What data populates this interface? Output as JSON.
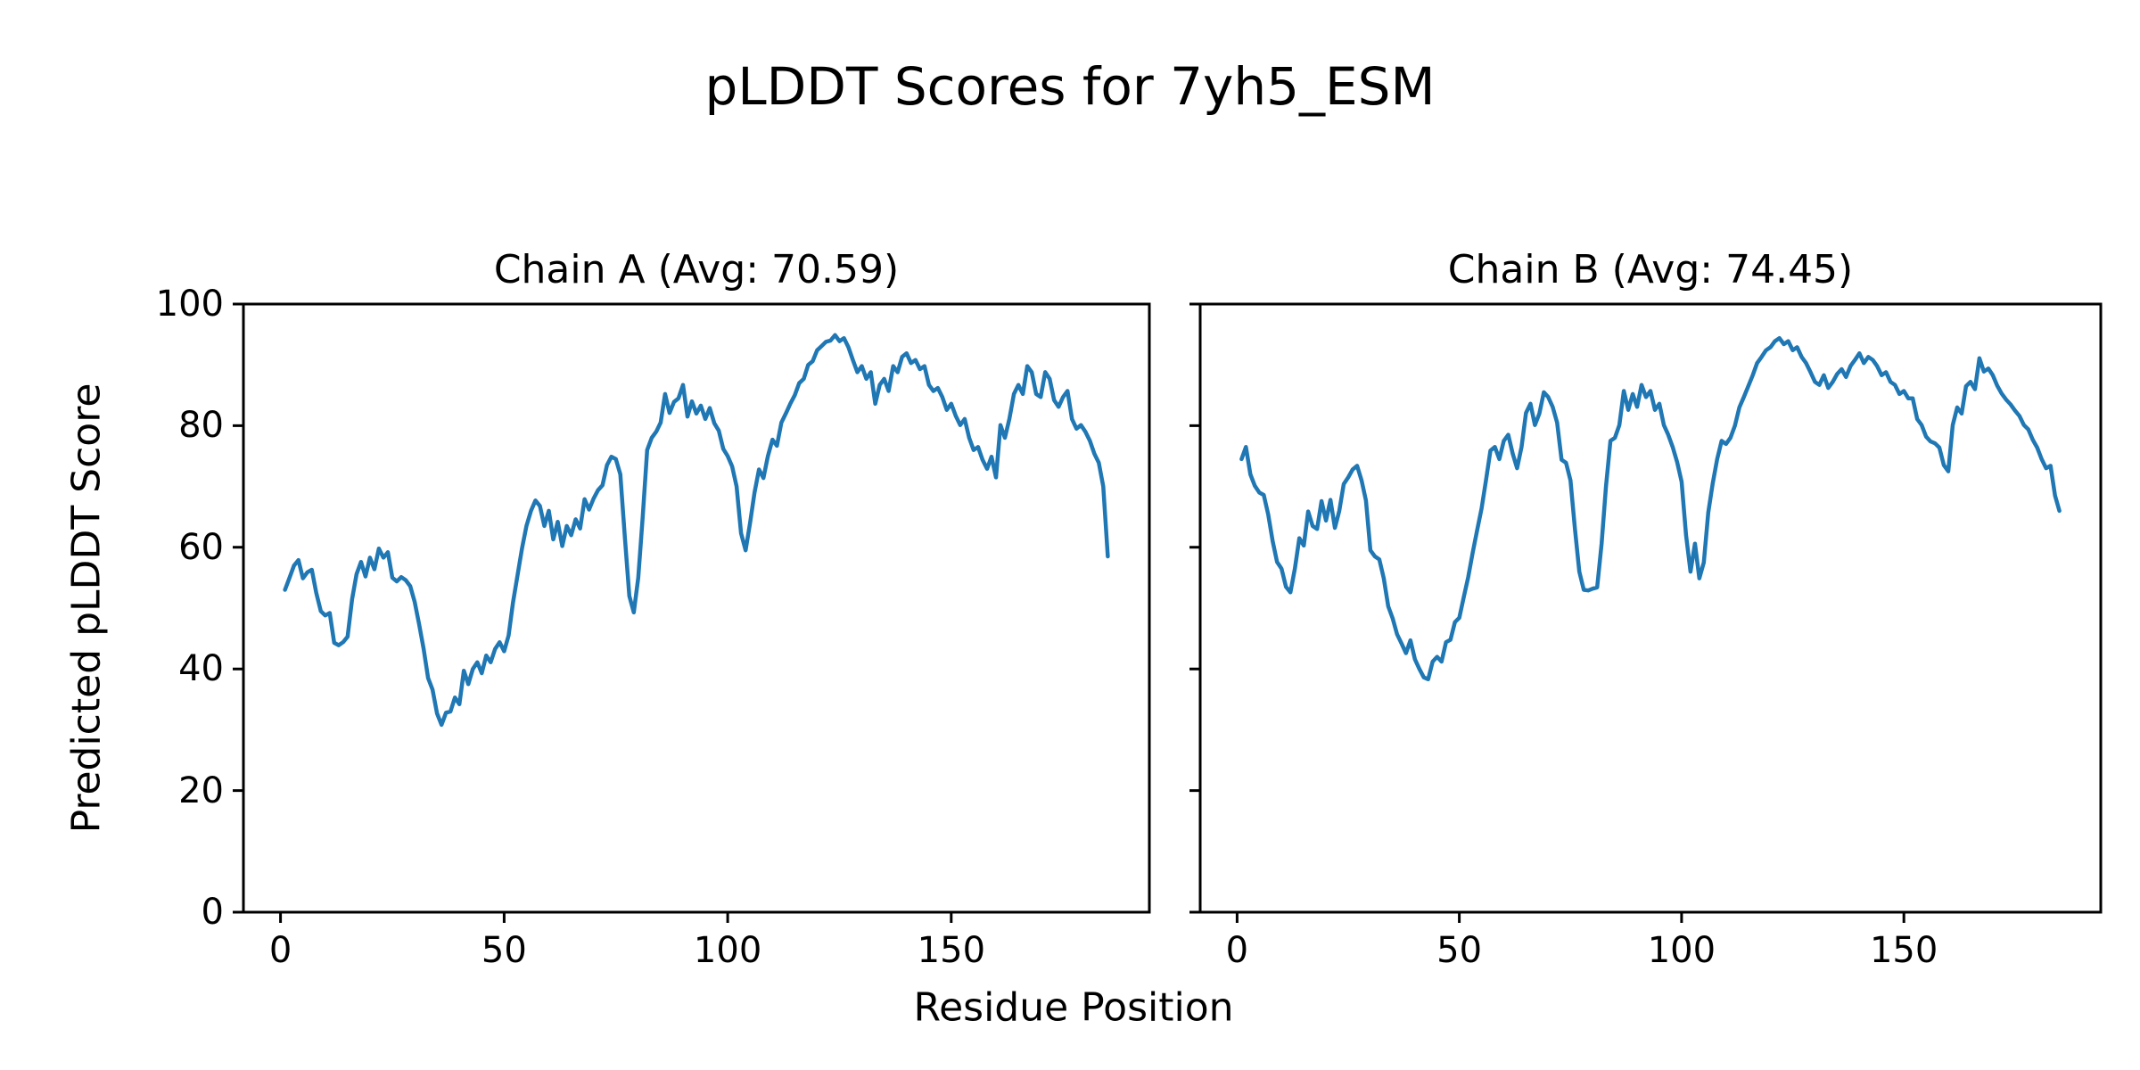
{
  "figure": {
    "title": "pLDDT Scores for 7yh5_ESM",
    "xlabel": "Residue Position",
    "ylabel": "Predicted pLDDT Score",
    "background_color": "#ffffff",
    "text_color": "#000000",
    "spine_color": "#000000"
  },
  "chart_data": [
    {
      "type": "line",
      "title": "Chain A (Avg: 70.59)",
      "chain": "A",
      "avg_plddt": 70.59,
      "line_color": "#1f77b4",
      "x_start": 1,
      "x_ticks": [
        0,
        50,
        100,
        150
      ],
      "y_ticks": [
        0,
        20,
        40,
        60,
        80,
        100
      ],
      "xlim": [
        -8.3,
        194.3
      ],
      "ylim": [
        0,
        100
      ],
      "grid": false,
      "legend": "none",
      "y_tick_labels_visible": true,
      "values": [
        53.0,
        55.0,
        57.0,
        57.9,
        54.9,
        55.9,
        56.3,
        52.5,
        49.5,
        48.8,
        49.2,
        44.3,
        43.9,
        44.4,
        45.3,
        51.5,
        55.6,
        57.6,
        55.2,
        58.3,
        56.4,
        59.8,
        58.3,
        59.2,
        55.0,
        54.4,
        55.1,
        54.6,
        53.6,
        51.0,
        47.3,
        43.3,
        38.5,
        36.6,
        32.7,
        30.8,
        32.8,
        33.0,
        35.3,
        34.2,
        39.7,
        37.5,
        40.0,
        41.1,
        39.3,
        42.2,
        41.1,
        43.3,
        44.4,
        42.9,
        45.5,
        51.0,
        55.4,
        59.8,
        63.5,
        66.0,
        67.7,
        66.8,
        63.5,
        66.0,
        61.3,
        64.2,
        60.2,
        63.5,
        62.0,
        64.6,
        63.1,
        67.9,
        66.2,
        68.0,
        69.4,
        70.2,
        73.5,
        74.9,
        74.5,
        72.0,
        61.6,
        52.0,
        49.3,
        55.0,
        65.0,
        76.0,
        78.0,
        79.0,
        80.5,
        85.2,
        82.1,
        83.9,
        84.5,
        86.7,
        81.5,
        84.0,
        82.0,
        83.3,
        81.1,
        82.9,
        80.4,
        79.2,
        76.2,
        75.0,
        73.3,
        70.0,
        62.3,
        59.5,
        64.0,
        69.0,
        72.8,
        71.4,
        75.0,
        77.7,
        76.7,
        80.5,
        82.0,
        83.6,
        85.0,
        87.0,
        87.7,
        90.0,
        90.6,
        92.4,
        93.1,
        93.8,
        94.0,
        94.9,
        93.9,
        94.4,
        92.9,
        90.8,
        88.8,
        89.8,
        87.7,
        88.8,
        83.6,
        86.7,
        87.7,
        85.7,
        89.8,
        88.8,
        91.3,
        91.9,
        90.3,
        90.8,
        89.3,
        89.8,
        86.7,
        85.7,
        86.2,
        84.7,
        82.6,
        83.6,
        81.6,
        80.1,
        81.1,
        78.0,
        76.0,
        76.5,
        74.4,
        72.9,
        74.9,
        71.5,
        80.1,
        78.0,
        81.1,
        85.2,
        86.7,
        85.2,
        89.8,
        88.8,
        85.2,
        84.7,
        88.8,
        87.7,
        84.2,
        83.1,
        84.7,
        85.7,
        81.1,
        79.5,
        80.1,
        79.0,
        77.5,
        75.4,
        73.9,
        70.0,
        58.5
      ]
    },
    {
      "type": "line",
      "title": "Chain B (Avg: 74.45)",
      "chain": "B",
      "avg_plddt": 74.45,
      "line_color": "#1f77b4",
      "x_start": 1,
      "x_ticks": [
        0,
        50,
        100,
        150
      ],
      "y_ticks": [
        0,
        20,
        40,
        60,
        80,
        100
      ],
      "xlim": [
        -8.3,
        194.3
      ],
      "ylim": [
        0,
        100
      ],
      "grid": false,
      "legend": "none",
      "y_tick_labels_visible": false,
      "values": [
        74.5,
        76.5,
        72.0,
        70.1,
        69.0,
        68.6,
        65.4,
        61.0,
        57.6,
        56.5,
        53.5,
        52.6,
        56.5,
        61.5,
        60.3,
        65.9,
        63.5,
        63.0,
        67.6,
        64.4,
        67.8,
        63.2,
        66.0,
        70.4,
        71.5,
        72.8,
        73.4,
        71.0,
        67.7,
        59.5,
        58.5,
        58.0,
        54.9,
        50.3,
        48.3,
        45.7,
        44.2,
        42.6,
        44.7,
        41.6,
        40.0,
        38.6,
        38.3,
        41.2,
        42.0,
        41.2,
        44.4,
        44.8,
        47.7,
        48.4,
        51.8,
        55.1,
        59.1,
        62.8,
        66.4,
        71.0,
        75.9,
        76.5,
        74.5,
        77.5,
        78.5,
        75.4,
        73.0,
        76.5,
        82.1,
        83.6,
        80.1,
        82.0,
        85.5,
        84.7,
        83.1,
        80.5,
        74.4,
        73.9,
        71.0,
        63.0,
        56.0,
        53.0,
        52.9,
        53.2,
        53.4,
        60.6,
        70.0,
        77.5,
        78.0,
        80.1,
        85.7,
        82.6,
        85.2,
        83.1,
        86.7,
        84.7,
        85.7,
        82.6,
        83.6,
        80.1,
        78.5,
        76.5,
        74.0,
        70.8,
        62.0,
        56.0,
        60.6,
        54.9,
        57.5,
        65.7,
        70.5,
        74.5,
        77.5,
        77.0,
        78.0,
        80.0,
        83.0,
        84.7,
        86.5,
        88.3,
        90.3,
        91.3,
        92.4,
        92.9,
        93.9,
        94.4,
        93.4,
        93.9,
        92.4,
        92.9,
        91.3,
        90.3,
        88.8,
        87.2,
        86.7,
        88.3,
        86.2,
        87.2,
        88.5,
        89.3,
        88.0,
        89.8,
        90.8,
        91.9,
        90.3,
        91.3,
        90.8,
        89.8,
        88.3,
        88.8,
        87.2,
        86.7,
        85.2,
        85.7,
        84.5,
        84.5,
        81.1,
        80.1,
        78.2,
        77.4,
        77.1,
        76.4,
        73.5,
        72.5,
        80.1,
        83.0,
        82.0,
        86.5,
        87.2,
        86.0,
        91.1,
        88.9,
        89.4,
        88.3,
        86.6,
        85.3,
        84.3,
        83.5,
        82.5,
        81.6,
        80.1,
        79.4,
        77.7,
        76.4,
        74.5,
        73.0,
        73.4,
        68.5,
        66.0
      ]
    }
  ]
}
